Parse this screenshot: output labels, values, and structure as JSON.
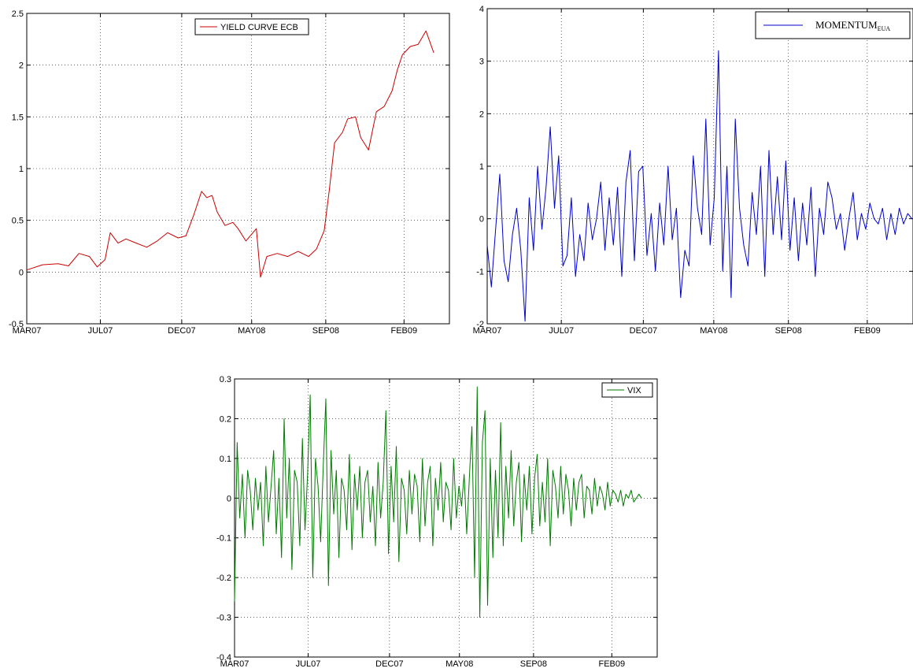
{
  "chart_data": [
    {
      "type": "line",
      "title": "",
      "xlabel": "",
      "ylabel": "",
      "xlim": [
        0,
        810
      ],
      "ylim": [
        -0.5,
        2.5
      ],
      "grid": true,
      "legend_position": "top-right",
      "x_ticks": [
        {
          "x": 0,
          "label": "MAR07"
        },
        {
          "x": 141,
          "label": "JUL07"
        },
        {
          "x": 297,
          "label": "DEC07"
        },
        {
          "x": 431,
          "label": "MAY08"
        },
        {
          "x": 573,
          "label": "SEP08"
        },
        {
          "x": 723,
          "label": "FEB09"
        }
      ],
      "y_ticks": [
        {
          "y": -0.5,
          "label": "-0.5"
        },
        {
          "y": 0,
          "label": "0"
        },
        {
          "y": 0.5,
          "label": "0.5"
        },
        {
          "y": 1,
          "label": "1"
        },
        {
          "y": 1.5,
          "label": "1.5"
        },
        {
          "y": 2,
          "label": "2"
        },
        {
          "y": 2.5,
          "label": "2.5"
        }
      ],
      "series": [
        {
          "name": "YIELD CURVE ECB",
          "color": "#cc0000",
          "x": [
            0,
            30,
            60,
            80,
            100,
            120,
            135,
            150,
            160,
            175,
            190,
            210,
            230,
            250,
            270,
            290,
            305,
            320,
            335,
            345,
            355,
            365,
            380,
            395,
            405,
            420,
            440,
            448,
            460,
            480,
            500,
            520,
            540,
            555,
            570,
            580,
            590,
            605,
            615,
            630,
            640,
            655,
            670,
            685,
            700,
            710,
            720,
            735,
            750,
            765,
            780
          ],
          "y": [
            0.02,
            0.07,
            0.08,
            0.06,
            0.18,
            0.15,
            0.05,
            0.12,
            0.38,
            0.28,
            0.32,
            0.28,
            0.24,
            0.3,
            0.38,
            0.33,
            0.35,
            0.55,
            0.78,
            0.72,
            0.74,
            0.58,
            0.45,
            0.48,
            0.42,
            0.3,
            0.42,
            -0.05,
            0.15,
            0.18,
            0.15,
            0.2,
            0.15,
            0.22,
            0.4,
            0.8,
            1.25,
            1.35,
            1.48,
            1.5,
            1.3,
            1.18,
            1.55,
            1.6,
            1.75,
            1.95,
            2.1,
            2.18,
            2.2,
            2.33,
            2.12
          ]
        }
      ]
    },
    {
      "type": "line",
      "title": "",
      "xlabel": "",
      "ylabel": "",
      "xlim": [
        0,
        810
      ],
      "ylim": [
        -2,
        4
      ],
      "grid": true,
      "legend_position": "top-right",
      "x_ticks": [
        {
          "x": 0,
          "label": "MAR07"
        },
        {
          "x": 141,
          "label": "JUL07"
        },
        {
          "x": 297,
          "label": "DEC07"
        },
        {
          "x": 431,
          "label": "MAY08"
        },
        {
          "x": 573,
          "label": "SEP08"
        },
        {
          "x": 723,
          "label": "FEB09"
        }
      ],
      "y_ticks": [
        {
          "y": -2,
          "label": "-2"
        },
        {
          "y": -1,
          "label": "-1"
        },
        {
          "y": 0,
          "label": "0"
        },
        {
          "y": 1,
          "label": "1"
        },
        {
          "y": 2,
          "label": "2"
        },
        {
          "y": 3,
          "label": "3"
        },
        {
          "y": 4,
          "label": "4"
        }
      ],
      "series": [
        {
          "name": "MOMENTUM",
          "name_sub": "EUA",
          "color": "#0000cc",
          "x": [
            0,
            8,
            16,
            24,
            32,
            40,
            48,
            56,
            64,
            72,
            80,
            88,
            96,
            104,
            112,
            120,
            128,
            136,
            144,
            152,
            160,
            168,
            176,
            184,
            192,
            200,
            208,
            216,
            224,
            232,
            240,
            248,
            256,
            264,
            272,
            280,
            288,
            296,
            304,
            312,
            320,
            328,
            336,
            344,
            352,
            360,
            368,
            376,
            384,
            392,
            400,
            408,
            416,
            424,
            432,
            440,
            448,
            456,
            464,
            472,
            480,
            488,
            496,
            504,
            512,
            520,
            528,
            536,
            544,
            552,
            560,
            568,
            576,
            584,
            592,
            600,
            608,
            616,
            624,
            632,
            640,
            648,
            656,
            664,
            672,
            680,
            688,
            696,
            704,
            712,
            720,
            728,
            736,
            744,
            752,
            760,
            768,
            776,
            784,
            792,
            800,
            808
          ],
          "y": [
            -0.5,
            -1.3,
            -0.2,
            0.85,
            -0.8,
            -1.2,
            -0.3,
            0.2,
            -0.6,
            -1.95,
            0.4,
            -0.6,
            1.0,
            -0.2,
            0.6,
            1.75,
            0.2,
            1.2,
            -0.9,
            -0.7,
            0.4,
            -1.1,
            -0.3,
            -0.8,
            0.3,
            -0.4,
            0.0,
            0.7,
            -0.6,
            0.4,
            -0.5,
            0.6,
            -1.1,
            0.7,
            1.3,
            -0.8,
            0.9,
            1.0,
            -0.7,
            0.1,
            -1.0,
            0.3,
            -0.5,
            1.0,
            -0.4,
            0.2,
            -1.5,
            -0.6,
            -0.9,
            1.2,
            0.2,
            -0.3,
            1.9,
            -0.5,
            0.4,
            3.2,
            -1.0,
            1.0,
            -1.5,
            1.9,
            0.2,
            -0.5,
            -0.9,
            0.5,
            -0.3,
            1.0,
            -1.1,
            1.3,
            -0.3,
            0.8,
            -0.4,
            1.1,
            -0.6,
            0.4,
            -0.8,
            0.3,
            -0.5,
            0.6,
            -1.1,
            0.2,
            -0.3,
            0.7,
            0.4,
            -0.2,
            0.1,
            -0.6,
            0.0,
            0.5,
            -0.4,
            0.1,
            -0.2,
            0.3,
            0.0,
            -0.1,
            0.2,
            -0.4,
            0.1,
            -0.3,
            0.2,
            -0.1,
            0.1,
            0.0
          ]
        }
      ]
    },
    {
      "type": "line",
      "title": "",
      "xlabel": "",
      "ylabel": "",
      "xlim": [
        0,
        810
      ],
      "ylim": [
        -0.4,
        0.3
      ],
      "grid": true,
      "legend_position": "top-right",
      "x_ticks": [
        {
          "x": 0,
          "label": "MAR07"
        },
        {
          "x": 141,
          "label": "JUL07"
        },
        {
          "x": 297,
          "label": "DEC07"
        },
        {
          "x": 431,
          "label": "MAY08"
        },
        {
          "x": 573,
          "label": "SEP08"
        },
        {
          "x": 723,
          "label": "FEB09"
        }
      ],
      "y_ticks": [
        {
          "y": -0.4,
          "label": "-0.4"
        },
        {
          "y": -0.3,
          "label": "-0.3"
        },
        {
          "y": -0.2,
          "label": "-0.2"
        },
        {
          "y": -0.1,
          "label": "-0.1"
        },
        {
          "y": 0,
          "label": "0"
        },
        {
          "y": 0.1,
          "label": "0.1"
        },
        {
          "y": 0.2,
          "label": "0.2"
        },
        {
          "y": 0.3,
          "label": "0.3"
        }
      ],
      "series": [
        {
          "name": "VIX",
          "color": "#007a00",
          "x": [
            0,
            5,
            10,
            15,
            20,
            25,
            30,
            35,
            40,
            45,
            50,
            55,
            60,
            65,
            70,
            75,
            80,
            85,
            90,
            95,
            100,
            105,
            110,
            115,
            120,
            125,
            130,
            135,
            140,
            145,
            150,
            155,
            160,
            165,
            170,
            175,
            180,
            185,
            190,
            195,
            200,
            205,
            210,
            215,
            220,
            225,
            230,
            235,
            240,
            245,
            250,
            255,
            260,
            265,
            270,
            275,
            280,
            285,
            290,
            295,
            300,
            305,
            310,
            315,
            320,
            325,
            330,
            335,
            340,
            345,
            350,
            355,
            360,
            365,
            370,
            375,
            380,
            385,
            390,
            395,
            400,
            405,
            410,
            415,
            420,
            425,
            430,
            435,
            440,
            445,
            450,
            455,
            460,
            465,
            470,
            475,
            480,
            485,
            490,
            495,
            500,
            505,
            510,
            515,
            520,
            525,
            530,
            535,
            540,
            545,
            550,
            555,
            560,
            565,
            570,
            575,
            580,
            585,
            590,
            595,
            600,
            605,
            610,
            615,
            620,
            625,
            630,
            635,
            640,
            645,
            650,
            655,
            660,
            665,
            670,
            675,
            680,
            685,
            690,
            695,
            700,
            705,
            710,
            715,
            720,
            725,
            730,
            735,
            740,
            745,
            750,
            755,
            760,
            765,
            770,
            775,
            780
          ],
          "y": [
            -0.26,
            0.14,
            -0.05,
            0.06,
            -0.1,
            0.07,
            0.02,
            -0.08,
            0.05,
            -0.03,
            0.04,
            -0.12,
            0.08,
            -0.06,
            0.03,
            0.12,
            -0.09,
            0.05,
            -0.15,
            0.2,
            -0.05,
            0.1,
            -0.18,
            0.07,
            0.04,
            -0.12,
            0.15,
            -0.08,
            0.06,
            0.26,
            -0.2,
            0.1,
            0.03,
            -0.11,
            0.08,
            0.25,
            -0.22,
            0.12,
            -0.04,
            0.07,
            -0.15,
            0.05,
            0.02,
            -0.08,
            0.11,
            -0.13,
            0.06,
            -0.03,
            0.08,
            -0.1,
            0.04,
            0.07,
            -0.06,
            0.03,
            -0.12,
            0.09,
            -0.05,
            0.04,
            0.22,
            -0.14,
            0.08,
            -0.06,
            0.13,
            -0.16,
            0.05,
            0.02,
            -0.09,
            0.07,
            -0.04,
            0.06,
            0.03,
            -0.11,
            0.1,
            -0.07,
            0.04,
            0.08,
            -0.12,
            0.05,
            -0.03,
            0.09,
            -0.06,
            0.04,
            0.02,
            -0.08,
            0.1,
            -0.05,
            0.03,
            -0.02,
            0.06,
            -0.09,
            0.05,
            0.18,
            -0.2,
            0.28,
            -0.3,
            0.14,
            0.22,
            -0.27,
            0.1,
            -0.15,
            0.07,
            -0.1,
            0.19,
            -0.12,
            0.08,
            -0.05,
            0.12,
            -0.07,
            0.04,
            0.09,
            -0.11,
            0.06,
            -0.03,
            0.08,
            -0.09,
            0.05,
            0.11,
            -0.07,
            0.04,
            -0.06,
            0.1,
            -0.12,
            0.07,
            0.03,
            -0.05,
            0.08,
            -0.04,
            0.06,
            0.02,
            -0.07,
            0.05,
            -0.03,
            0.04,
            0.06,
            -0.05,
            0.03,
            0.02,
            -0.04,
            0.05,
            -0.02,
            0.03,
            0.01,
            -0.03,
            0.04,
            -0.02,
            0.02,
            0.01,
            -0.01,
            0.02,
            -0.02,
            0.01,
            0.0,
            0.02,
            -0.01,
            0.0,
            0.01,
            0.0
          ]
        }
      ]
    }
  ]
}
